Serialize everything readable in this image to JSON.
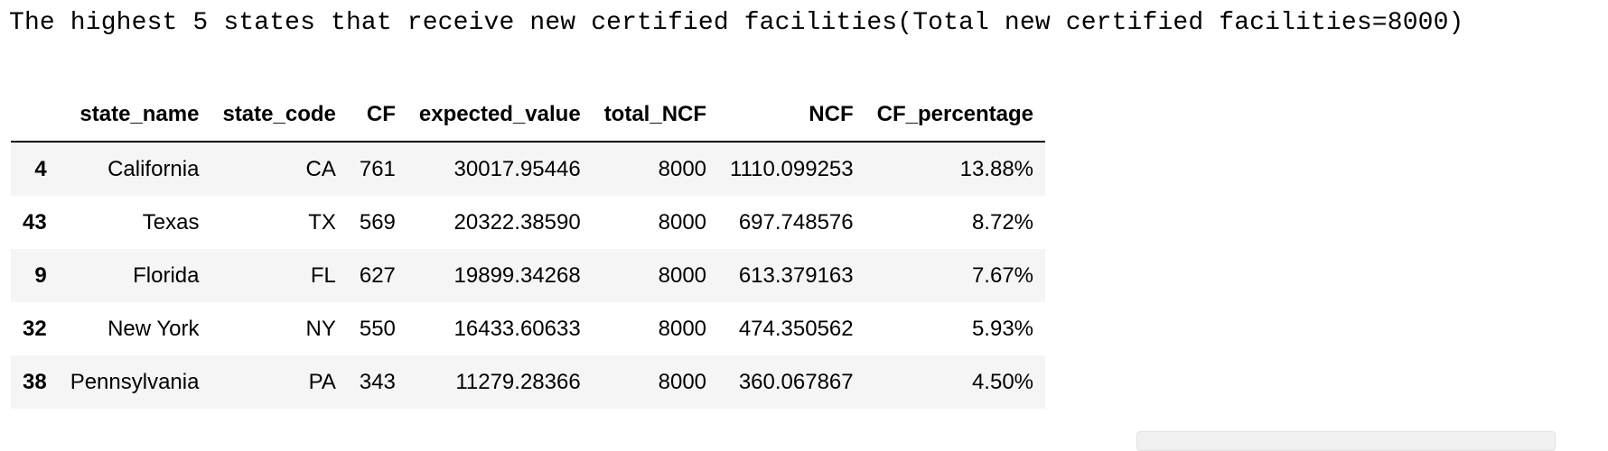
{
  "output": {
    "title": "The highest 5 states that receive new certified facilities(Total new certified facilities=8000)"
  },
  "table": {
    "columns": [
      "",
      "state_name",
      "state_code",
      "CF",
      "expected_value",
      "total_NCF",
      "NCF",
      "CF_percentage"
    ],
    "rows": [
      {
        "index": "4",
        "cells": [
          "California",
          "CA",
          "761",
          "30017.95446",
          "8000",
          "1110.099253",
          "13.88%"
        ]
      },
      {
        "index": "43",
        "cells": [
          "Texas",
          "TX",
          "569",
          "20322.38590",
          "8000",
          "697.748576",
          "8.72%"
        ]
      },
      {
        "index": "9",
        "cells": [
          "Florida",
          "FL",
          "627",
          "19899.34268",
          "8000",
          "613.379163",
          "7.67%"
        ]
      },
      {
        "index": "32",
        "cells": [
          "New York",
          "NY",
          "550",
          "16433.60633",
          "8000",
          "474.350562",
          "5.93%"
        ]
      },
      {
        "index": "38",
        "cells": [
          "Pennsylvania",
          "PA",
          "343",
          "11279.28366",
          "8000",
          "360.067867",
          "4.50%"
        ]
      }
    ]
  }
}
